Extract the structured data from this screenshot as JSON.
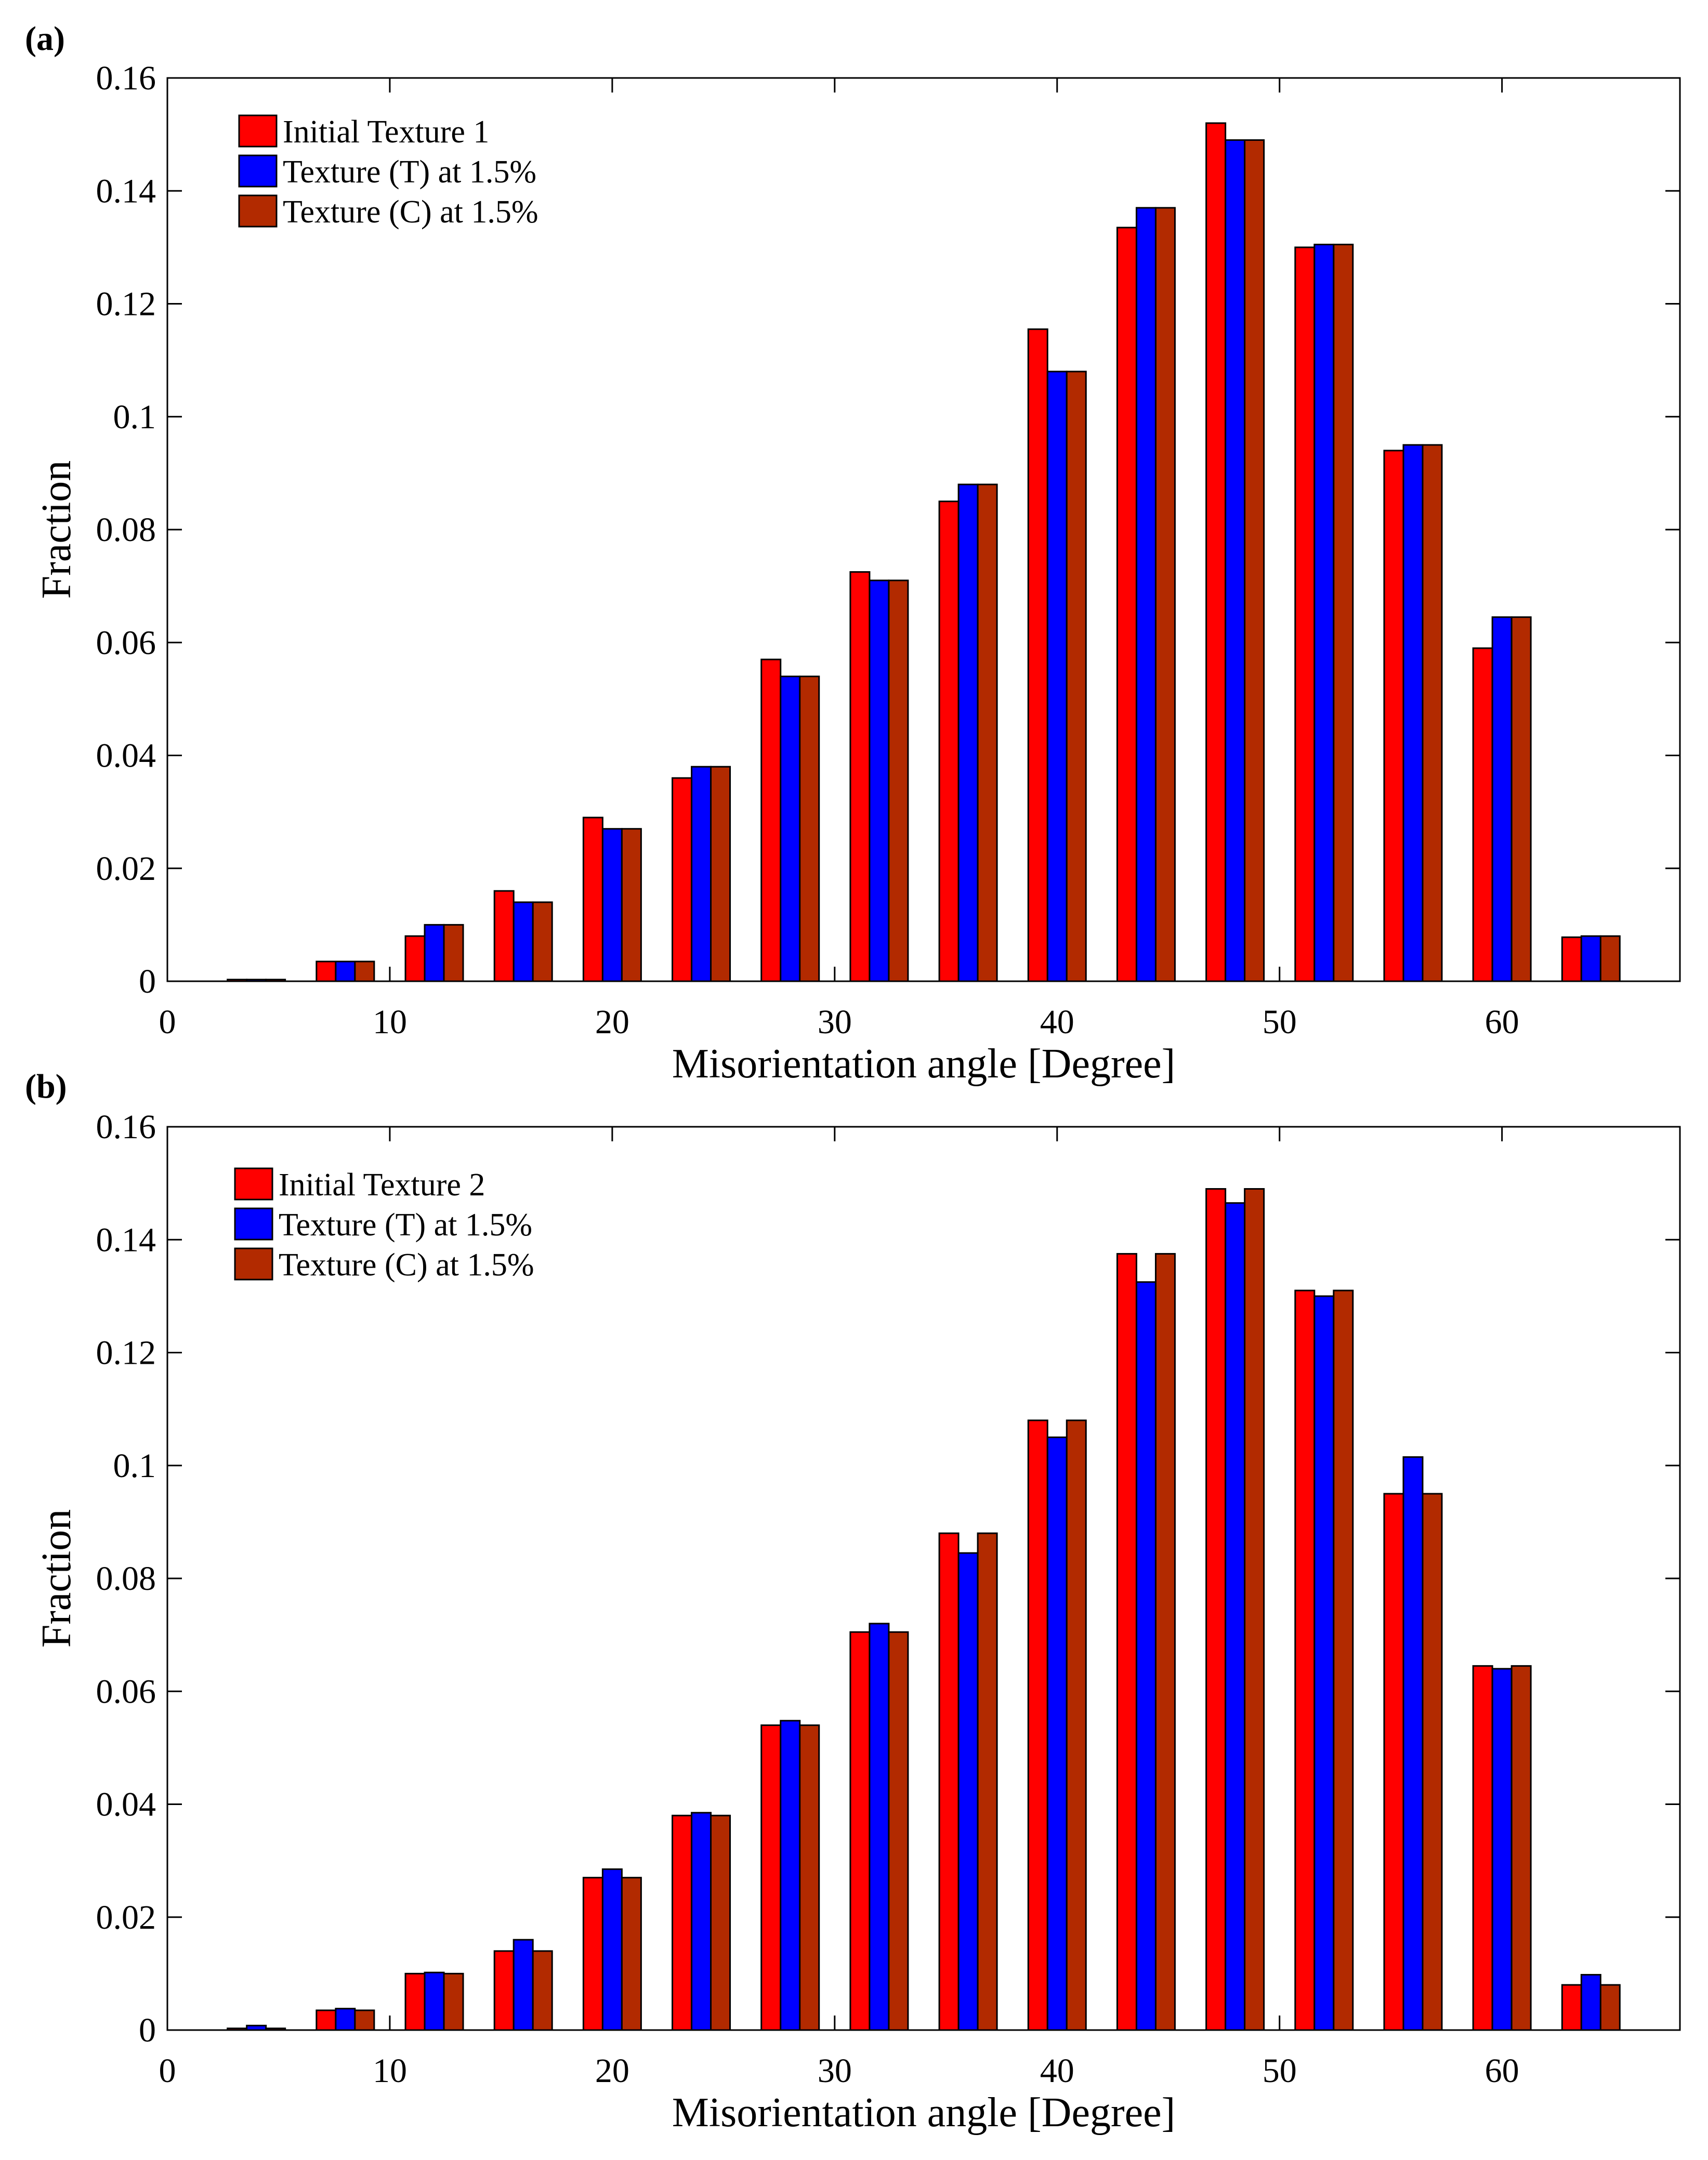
{
  "chart_data": [
    {
      "type": "bar",
      "panel_label": "(a)",
      "xlabel": "Misorientation angle [Degree]",
      "ylabel": "Fraction",
      "xlim": [
        0,
        68
      ],
      "ylim": [
        0,
        0.16
      ],
      "xticks": [
        0,
        10,
        20,
        30,
        40,
        50,
        60
      ],
      "xtick_labels": [
        "0",
        "10",
        "20",
        "30",
        "40",
        "50",
        "60"
      ],
      "yticks": [
        0,
        0.02,
        0.04,
        0.06,
        0.08,
        0.1,
        0.12,
        0.14,
        0.16
      ],
      "ytick_labels": [
        "0",
        "0.02",
        "0.04",
        "0.06",
        "0.08",
        "0.1",
        "0.12",
        "0.14",
        "0.16"
      ],
      "categories": [
        4,
        8,
        12,
        16,
        20,
        24,
        28,
        32,
        36,
        40,
        44,
        48,
        52,
        56,
        60,
        64
      ],
      "legend_position": "top-left",
      "series": [
        {
          "name": "Initial Texture 1",
          "color": "#ff0000",
          "values": [
            0.0003,
            0.0035,
            0.008,
            0.016,
            0.029,
            0.036,
            0.057,
            0.0725,
            0.085,
            0.1155,
            0.1335,
            0.152,
            0.13,
            0.094,
            0.059,
            0.0078
          ]
        },
        {
          "name": "Texture (T) at 1.5%",
          "color": "#0000ff",
          "values": [
            0.0003,
            0.0035,
            0.01,
            0.014,
            0.027,
            0.038,
            0.054,
            0.071,
            0.088,
            0.108,
            0.137,
            0.149,
            0.1305,
            0.095,
            0.0645,
            0.008
          ]
        },
        {
          "name": "Texture (C) at 1.5%",
          "color": "#b22a00",
          "values": [
            0.0003,
            0.0035,
            0.01,
            0.014,
            0.027,
            0.038,
            0.054,
            0.071,
            0.088,
            0.108,
            0.137,
            0.149,
            0.1305,
            0.095,
            0.0645,
            0.008
          ]
        }
      ]
    },
    {
      "type": "bar",
      "panel_label": "(b)",
      "xlabel": "Misorientation angle [Degree]",
      "ylabel": "Fraction",
      "xlim": [
        0,
        68
      ],
      "ylim": [
        0,
        0.16
      ],
      "xticks": [
        0,
        10,
        20,
        30,
        40,
        50,
        60
      ],
      "xtick_labels": [
        "0",
        "10",
        "20",
        "30",
        "40",
        "50",
        "60"
      ],
      "yticks": [
        0,
        0.02,
        0.04,
        0.06,
        0.08,
        0.1,
        0.12,
        0.14,
        0.16
      ],
      "ytick_labels": [
        "0",
        "0.02",
        "0.04",
        "0.06",
        "0.08",
        "0.1",
        "0.12",
        "0.14",
        "0.16"
      ],
      "categories": [
        4,
        8,
        12,
        16,
        20,
        24,
        28,
        32,
        36,
        40,
        44,
        48,
        52,
        56,
        60,
        64
      ],
      "legend_position": "top-left",
      "series": [
        {
          "name": "Initial Texture 2",
          "color": "#ff0000",
          "values": [
            0.0003,
            0.0035,
            0.01,
            0.014,
            0.027,
            0.038,
            0.054,
            0.0705,
            0.088,
            0.108,
            0.1375,
            0.149,
            0.131,
            0.095,
            0.0645,
            0.008
          ]
        },
        {
          "name": "Texture (T) at 1.5%",
          "color": "#0000ff",
          "values": [
            0.0008,
            0.0038,
            0.0102,
            0.016,
            0.0285,
            0.0385,
            0.0548,
            0.072,
            0.0845,
            0.105,
            0.1325,
            0.1465,
            0.13,
            0.1015,
            0.064,
            0.0098
          ]
        },
        {
          "name": "Texture (C) at 1.5%",
          "color": "#b22a00",
          "values": [
            0.0003,
            0.0035,
            0.01,
            0.014,
            0.027,
            0.038,
            0.054,
            0.0705,
            0.088,
            0.108,
            0.1375,
            0.149,
            0.131,
            0.095,
            0.0645,
            0.008
          ]
        }
      ]
    }
  ]
}
